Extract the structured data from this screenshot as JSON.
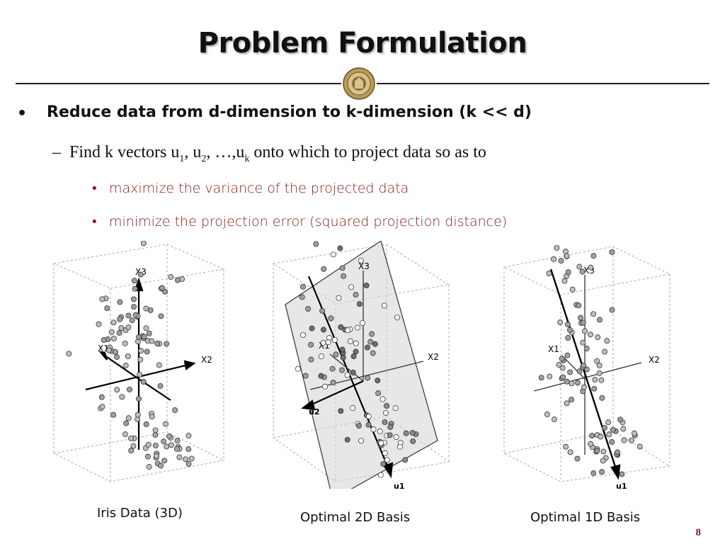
{
  "title": "Problem Formulation",
  "bullet1": "Reduce data from d-dimension to k-dimension (k << d)",
  "bullet2": {
    "dash": "–",
    "pre": "Find k vectors u",
    "s1": "1",
    "t1": ", u",
    "s2": "2",
    "t2": ", …,u",
    "s3": "k",
    "post": " onto which to project data so as to"
  },
  "sub_bullets": [
    "maximize the variance of  the projected data",
    "minimize the projection error  (squared projection distance)"
  ],
  "figures": [
    {
      "caption": "Iris Data (3D)",
      "axes": [
        "X3",
        "X1",
        "X2"
      ]
    },
    {
      "caption": "Optimal 2D Basis",
      "axes": [
        "X3",
        "X1",
        "X2",
        "u2",
        "u1"
      ]
    },
    {
      "caption": "Optimal 1D Basis",
      "axes": [
        "X3",
        "X1",
        "X2",
        "u1"
      ]
    }
  ],
  "page_number": "8",
  "colors": {
    "accent": "#8b1a1a",
    "text": "#111111"
  }
}
